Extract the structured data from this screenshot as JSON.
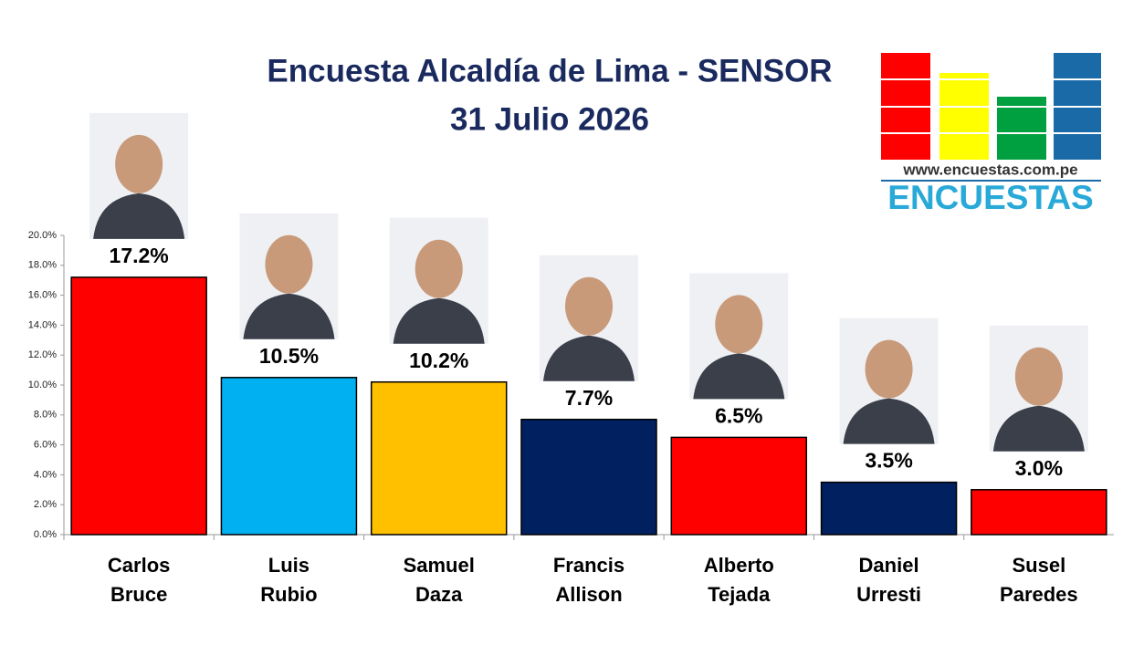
{
  "chart_data": {
    "type": "bar",
    "title": "Encuesta Alcaldía de Lima - SENSOR",
    "subtitle": "31 Julio 2026",
    "categories": [
      "Carlos Bruce",
      "Luis Rubio",
      "Samuel Daza",
      "Francis Allison",
      "Alberto Tejada",
      "Daniel Urresti",
      "Susel Paredes"
    ],
    "values": [
      17.2,
      10.5,
      10.2,
      7.7,
      6.5,
      3.5,
      3.0
    ],
    "value_labels": [
      "17.2%",
      "10.5%",
      "10.2%",
      "7.7%",
      "6.5%",
      "3.5%",
      "3.0%"
    ],
    "colors": [
      "#ff0000",
      "#00b0f0",
      "#ffc000",
      "#002060",
      "#ff0000",
      "#002060",
      "#ff0000"
    ],
    "ylim": [
      0,
      20
    ],
    "yticks": [
      {
        "value": 0,
        "label": "0.0%"
      },
      {
        "value": 2,
        "label": "2.0%"
      },
      {
        "value": 4,
        "label": "4.0%"
      },
      {
        "value": 6,
        "label": "6.0%"
      },
      {
        "value": 8,
        "label": "8.0%"
      },
      {
        "value": 10,
        "label": "10.0%"
      },
      {
        "value": 12,
        "label": "12.0%"
      },
      {
        "value": 14,
        "label": "14.0%"
      },
      {
        "value": 16,
        "label": "16.0%"
      },
      {
        "value": 18,
        "label": "18.0%"
      },
      {
        "value": 20,
        "label": "20.0%"
      }
    ],
    "grid": false
  },
  "logo": {
    "url": "www.encuestas.com.pe",
    "name": "ENCUESTAS"
  }
}
